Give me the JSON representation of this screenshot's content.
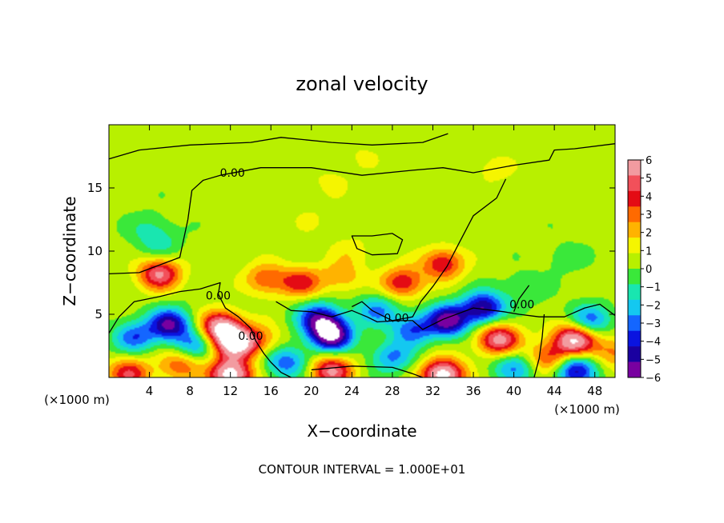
{
  "chart_data": {
    "type": "heatmap",
    "title": "zonal velocity",
    "xlabel": "X−coordinate",
    "ylabel": "Z−coordinate",
    "x_unit_left": "(×1000 m)",
    "x_unit_right": "(×1000 m)",
    "x_ticks": [
      4,
      8,
      12,
      16,
      20,
      24,
      28,
      32,
      36,
      40,
      44,
      48
    ],
    "y_ticks": [
      5,
      10,
      15
    ],
    "xlim": [
      0,
      50
    ],
    "ylim": [
      0,
      20
    ],
    "footer": "CONTOUR INTERVAL = 1.000E+01",
    "contour_label": "0.00",
    "colorbar": {
      "min": -6,
      "max": 6,
      "tick_values": [
        6,
        5,
        4,
        3,
        2,
        1,
        0,
        -1,
        -2,
        -3,
        -4,
        -5,
        -6
      ],
      "tick_labels": [
        "6",
        "5",
        "4",
        "3",
        "2",
        "1",
        "0",
        "−1",
        "−2",
        "−3",
        "−4",
        "−5",
        "−6"
      ],
      "colors": [
        "#f29ba0",
        "#f2505a",
        "#e40b14",
        "#ff6a00",
        "#ffb300",
        "#f5f500",
        "#b8f000",
        "#3ae83a",
        "#19e6b0",
        "#14c8f0",
        "#1466ff",
        "#0a14e0",
        "#1a00a0",
        "#7800a0"
      ]
    },
    "field": {
      "background_value": 0.3,
      "features": [
        {
          "x": 5.0,
          "z": 10.5,
          "value": -1.4
        },
        {
          "x": 4.0,
          "z": 11.8,
          "value": -1.2
        },
        {
          "x": 25.0,
          "z": 17.5,
          "value": 0.6
        },
        {
          "x": 38.0,
          "z": 16.5,
          "value": 1.0
        },
        {
          "x": 22.0,
          "z": 15.5,
          "value": 0.8
        },
        {
          "x": 45.0,
          "z": 9.5,
          "value": -0.8
        },
        {
          "x": 41.0,
          "z": 7.0,
          "value": -1.2
        },
        {
          "x": 20.0,
          "z": 12.5,
          "value": 0.6
        },
        {
          "x": 24.0,
          "z": 10.0,
          "value": 1.0
        },
        {
          "x": 5.0,
          "z": 8.2,
          "value": 5.0
        },
        {
          "x": 15.5,
          "z": 7.8,
          "value": 3.0
        },
        {
          "x": 19.0,
          "z": 7.5,
          "value": 3.5
        },
        {
          "x": 23.0,
          "z": 8.0,
          "value": 2.0
        },
        {
          "x": 29.0,
          "z": 7.5,
          "value": 4.0
        },
        {
          "x": 33.0,
          "z": 9.0,
          "value": 4.0
        },
        {
          "x": 6.0,
          "z": 4.2,
          "value": -5.5
        },
        {
          "x": 2.5,
          "z": 3.2,
          "value": -3.5
        },
        {
          "x": 11.0,
          "z": 4.0,
          "value": 6.0
        },
        {
          "x": 12.5,
          "z": 2.7,
          "value": 6.5
        },
        {
          "x": 15.0,
          "z": 3.0,
          "value": 2.0
        },
        {
          "x": 20.0,
          "z": 5.2,
          "value": -1.0
        },
        {
          "x": 22.0,
          "z": 3.3,
          "value": -6.5
        },
        {
          "x": 21.0,
          "z": 4.5,
          "value": -4.5
        },
        {
          "x": 26.5,
          "z": 5.3,
          "value": -3.0
        },
        {
          "x": 30.0,
          "z": 3.8,
          "value": -3.5
        },
        {
          "x": 33.5,
          "z": 4.5,
          "value": -6.0
        },
        {
          "x": 37.0,
          "z": 5.5,
          "value": -5.5
        },
        {
          "x": 38.5,
          "z": 3.0,
          "value": 5.5
        },
        {
          "x": 43.5,
          "z": 1.5,
          "value": 3.5
        },
        {
          "x": 46.0,
          "z": 3.0,
          "value": 6.5
        },
        {
          "x": 47.5,
          "z": 4.5,
          "value": -3.5
        },
        {
          "x": 46.0,
          "z": 0.6,
          "value": -5.0
        },
        {
          "x": 12.0,
          "z": 0.2,
          "value": 7.0
        },
        {
          "x": 2.0,
          "z": 0.3,
          "value": 4.0
        },
        {
          "x": 7.0,
          "z": 1.0,
          "value": 3.0
        },
        {
          "x": 22.0,
          "z": 0.5,
          "value": 5.0
        },
        {
          "x": 33.0,
          "z": 0.2,
          "value": 7.0
        },
        {
          "x": 28.0,
          "z": 1.6,
          "value": -3.0
        },
        {
          "x": 40.0,
          "z": 0.8,
          "value": -3.0
        },
        {
          "x": 17.5,
          "z": 1.2,
          "value": -3.5
        },
        {
          "x": 8.5,
          "z": 2.6,
          "value": -3.0
        },
        {
          "x": 50.0,
          "z": 2.0,
          "value": 2.5
        }
      ]
    },
    "zero_contours": [
      {
        "label": "0.00",
        "closed": false,
        "points": [
          [
            0,
            17.3
          ],
          [
            3,
            18.0
          ],
          [
            8,
            18.4
          ],
          [
            14,
            18.6
          ],
          [
            17,
            19.0
          ],
          [
            22,
            18.6
          ],
          [
            26,
            18.4
          ],
          [
            31,
            18.6
          ],
          [
            33.5,
            19.3
          ]
        ]
      },
      {
        "label": "0.00",
        "closed": false,
        "points": [
          [
            0,
            8.2
          ],
          [
            3,
            8.3
          ],
          [
            7,
            9.5
          ],
          [
            7.8,
            12.5
          ],
          [
            8.2,
            14.8
          ],
          [
            9.3,
            15.6
          ],
          [
            11,
            16.0
          ],
          [
            15,
            16.6
          ],
          [
            20,
            16.6
          ],
          [
            25,
            16.0
          ],
          [
            30,
            16.4
          ],
          [
            33,
            16.6
          ],
          [
            36,
            16.2
          ],
          [
            40,
            16.8
          ],
          [
            43.5,
            17.2
          ],
          [
            44,
            18.0
          ],
          [
            46,
            18.1
          ],
          [
            50,
            18.5
          ]
        ]
      },
      {
        "label": "0.00",
        "closed": false,
        "points": [
          [
            39.2,
            15.7
          ],
          [
            38.3,
            14.2
          ],
          [
            36,
            12.8
          ],
          [
            34.5,
            10.5
          ],
          [
            33.4,
            8.8
          ],
          [
            32,
            7.2
          ],
          [
            30.8,
            6.0
          ],
          [
            30,
            4.8
          ],
          [
            28,
            4.5
          ],
          [
            26,
            5.3
          ],
          [
            25,
            6.0
          ],
          [
            24,
            5.6
          ]
        ]
      },
      {
        "label": "0.00",
        "closed": true,
        "points": [
          [
            24,
            11.2
          ],
          [
            26,
            11.2
          ],
          [
            28,
            11.4
          ],
          [
            29,
            10.9
          ],
          [
            28.5,
            9.8
          ],
          [
            26,
            9.7
          ],
          [
            24.5,
            10.2
          ]
        ]
      },
      {
        "label": "0.00",
        "closed": false,
        "points": [
          [
            0,
            3.5
          ],
          [
            1,
            4.8
          ],
          [
            2.5,
            6.0
          ],
          [
            5,
            6.4
          ],
          [
            7,
            6.8
          ],
          [
            9,
            7.0
          ],
          [
            11,
            7.5
          ],
          [
            10.8,
            6.6
          ],
          [
            11.5,
            5.5
          ],
          [
            12.8,
            4.8
          ],
          [
            14,
            3.9
          ],
          [
            14.5,
            2.9
          ],
          [
            15.3,
            1.9
          ],
          [
            16,
            1.2
          ],
          [
            17,
            0.4
          ],
          [
            18,
            0
          ]
        ]
      },
      {
        "label": "0.00",
        "closed": false,
        "points": [
          [
            16.5,
            6.0
          ],
          [
            18,
            5.3
          ],
          [
            20,
            5.2
          ],
          [
            22,
            4.8
          ],
          [
            24,
            5.3
          ],
          [
            25.5,
            4.8
          ],
          [
            26.5,
            4.4
          ],
          [
            28.5,
            4.5
          ],
          [
            30,
            4.5
          ],
          [
            31,
            3.8
          ],
          [
            33,
            4.6
          ],
          [
            36,
            5.5
          ],
          [
            39,
            5.2
          ],
          [
            40.5,
            5.0
          ],
          [
            42.5,
            4.8
          ],
          [
            45,
            4.8
          ],
          [
            47,
            5.5
          ],
          [
            48.5,
            5.8
          ],
          [
            50,
            4.9
          ]
        ]
      },
      {
        "label": "0.00",
        "closed": false,
        "points": [
          [
            41.5,
            7.3
          ],
          [
            40.5,
            6.2
          ],
          [
            40,
            5.2
          ]
        ]
      },
      {
        "label": "0.00",
        "closed": false,
        "points": [
          [
            43,
            5.0
          ],
          [
            42.8,
            3.2
          ],
          [
            42.5,
            1.5
          ],
          [
            42,
            0
          ]
        ]
      },
      {
        "label": "0.00",
        "closed": false,
        "points": [
          [
            20,
            0.6
          ],
          [
            24,
            0.9
          ],
          [
            28,
            0.8
          ],
          [
            30,
            0.3
          ],
          [
            31,
            0
          ]
        ]
      }
    ]
  }
}
